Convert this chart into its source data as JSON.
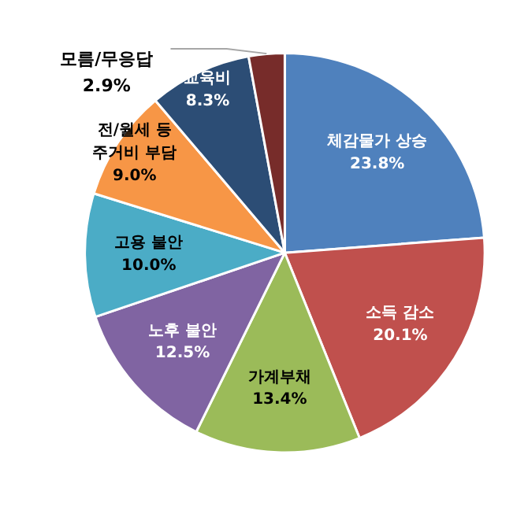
{
  "chart_data": {
    "type": "pie",
    "categories": [
      "체감물가 상승",
      "소득 감소",
      "가계부채",
      "노후 불안",
      "고용 불안",
      "전/월세 등\n주거비 부담",
      "교육비",
      "모름/무응답"
    ],
    "values": [
      23.8,
      20.1,
      13.4,
      12.5,
      10.0,
      9.0,
      8.3,
      2.9
    ],
    "value_labels": [
      "23.8%",
      "20.1%",
      "13.4%",
      "12.5%",
      "10.0%",
      "9.0%",
      "8.3%",
      "2.9%"
    ],
    "colors": [
      "#4f81bd",
      "#c0504d",
      "#9bbb59",
      "#8064a2",
      "#4bacc6",
      "#f79646",
      "#2c4d75",
      "#772c2a"
    ]
  }
}
